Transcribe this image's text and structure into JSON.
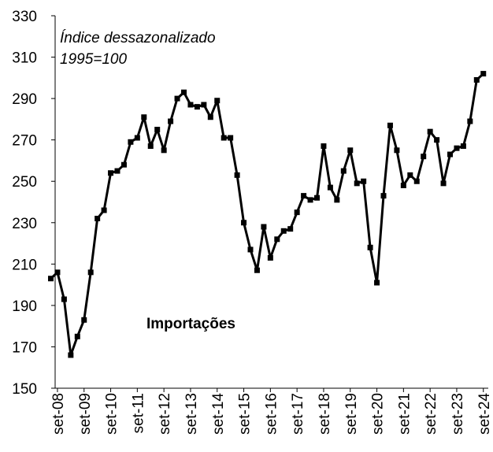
{
  "chart_data": {
    "type": "line",
    "annotations": [
      "Índice dessazonalizado",
      "1995=100",
      "Importações"
    ],
    "categories": [
      null,
      "set-08",
      null,
      null,
      null,
      "set-09",
      null,
      null,
      null,
      "set-10",
      null,
      null,
      null,
      "set-11",
      null,
      null,
      null,
      "set-12",
      null,
      null,
      null,
      "set-13",
      null,
      null,
      null,
      "set-14",
      null,
      null,
      null,
      "set-15",
      null,
      null,
      null,
      "set-16",
      null,
      null,
      null,
      "set-17",
      null,
      null,
      null,
      "set-18",
      null,
      null,
      null,
      "set-19",
      null,
      null,
      null,
      "set-20",
      null,
      null,
      null,
      "set-21",
      null,
      null,
      null,
      "set-22",
      null,
      null,
      null,
      "set-23",
      null,
      null,
      null,
      "set-24"
    ],
    "series": [
      {
        "name": "Importações",
        "color": "#000000",
        "values": [
          203,
          206,
          193,
          166,
          175,
          183,
          206,
          232,
          236,
          254,
          255,
          258,
          269,
          271,
          281,
          267,
          275,
          265,
          279,
          290,
          293,
          287,
          286,
          287,
          281,
          289,
          271,
          271,
          253,
          230,
          217,
          207,
          228,
          213,
          222,
          226,
          227,
          235,
          243,
          241,
          242,
          267,
          247,
          241,
          255,
          265,
          249,
          250,
          218,
          201,
          243,
          277,
          265,
          248,
          253,
          250,
          262,
          274,
          270,
          249,
          263,
          266,
          267,
          279,
          299,
          302
        ]
      }
    ],
    "ylim": [
      150,
      330
    ],
    "yticks": [
      150,
      170,
      190,
      210,
      230,
      250,
      270,
      290,
      310,
      330
    ],
    "grid": false
  }
}
